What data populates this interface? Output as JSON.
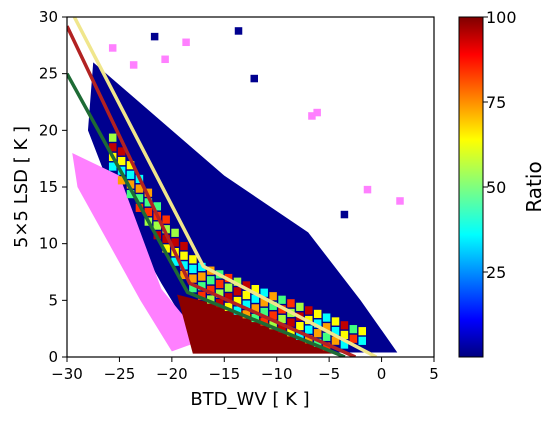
{
  "chart_data": {
    "type": "heatmap",
    "title": "",
    "xlabel": "BTD_WV [ K ]",
    "ylabel": "5×5 LSD [ K ]",
    "xlim": [
      -30,
      5
    ],
    "ylim": [
      0,
      30
    ],
    "x_ticks": [
      "−30",
      "−25",
      "−20",
      "−15",
      "−10",
      "−5",
      "0",
      "5"
    ],
    "x_tick_values": [
      -30,
      -25,
      -20,
      -15,
      -10,
      -5,
      0,
      5
    ],
    "y_ticks": [
      "0",
      "5",
      "10",
      "15",
      "20",
      "25",
      "30"
    ],
    "y_tick_values": [
      0,
      5,
      10,
      15,
      20,
      25,
      30
    ],
    "grid": false,
    "colorbar": {
      "label": "Ratio",
      "range": [
        0,
        100
      ],
      "ticks": [
        "25",
        "50",
        "75",
        "100"
      ],
      "tick_values": [
        25,
        50,
        75,
        100
      ],
      "colormap": "jet"
    },
    "regions": [
      {
        "kind": "dark-blue-wedge",
        "color": "#00008f",
        "polygon": [
          [
            -27.5,
            26
          ],
          [
            -15,
            16
          ],
          [
            -7,
            11
          ],
          [
            -2,
            5
          ],
          [
            1.5,
            0.4
          ],
          [
            -17,
            0.4
          ],
          [
            -21,
            6.5
          ],
          [
            -25.5,
            14
          ],
          [
            -28,
            20
          ]
        ]
      },
      {
        "kind": "magenta-sparse",
        "color": "#ff80ff",
        "polygon": [
          [
            -29.5,
            18
          ],
          [
            -25,
            16
          ],
          [
            -21,
            6
          ],
          [
            -17,
            1.5
          ],
          [
            -20,
            0.5
          ],
          [
            -23,
            5
          ],
          [
            -26,
            10
          ],
          [
            -29,
            15
          ]
        ]
      },
      {
        "kind": "dark-red-core",
        "color": "#8b0000",
        "polygon": [
          [
            -19.5,
            5.5
          ],
          [
            -13,
            4
          ],
          [
            -6,
            1
          ],
          [
            -4,
            0.3
          ],
          [
            -18,
            0.3
          ]
        ]
      }
    ],
    "lines": [
      {
        "color": "#f0e68c",
        "points": [
          [
            -29.3,
            30
          ],
          [
            -17,
            8
          ],
          [
            -0.5,
            0
          ]
        ]
      },
      {
        "color": "#b22222",
        "points": [
          [
            -30,
            29.2
          ],
          [
            -18.3,
            6.5
          ],
          [
            -2.5,
            0
          ]
        ]
      },
      {
        "color": "#1e6b35",
        "points": [
          [
            -30,
            25
          ],
          [
            -18.5,
            5.7
          ],
          [
            -3.5,
            0
          ]
        ]
      }
    ]
  }
}
